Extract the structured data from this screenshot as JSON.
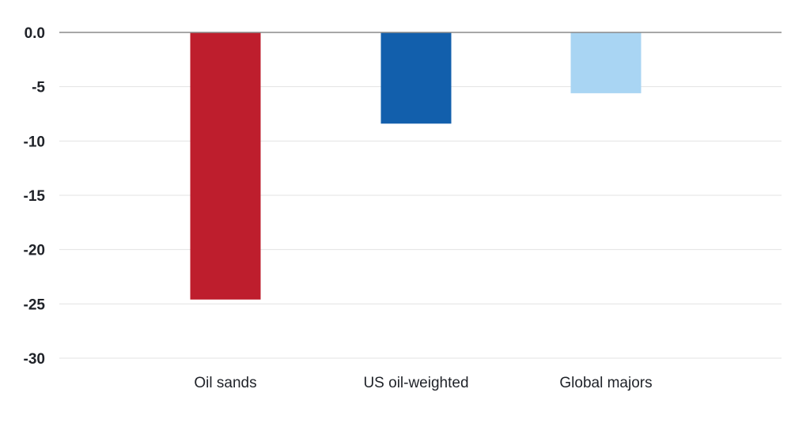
{
  "chart_data": {
    "type": "bar",
    "categories": [
      "Oil sands",
      "US oil-weighted",
      "Global majors"
    ],
    "values": [
      -24.6,
      -8.4,
      -5.6
    ],
    "colors": [
      "#be1e2d",
      "#125fac",
      "#a9d5f3"
    ],
    "ylim": [
      -30,
      0
    ],
    "yticks": [
      0,
      -5,
      -10,
      -15,
      -20,
      -25,
      -30
    ],
    "ytick_labels": [
      "0.0",
      "-5",
      "-10",
      "-15",
      "-20",
      "-25",
      "-30"
    ],
    "grid": true,
    "gridline_color": "#e3e3e3",
    "zero_line_color": "#8a8a8a"
  }
}
